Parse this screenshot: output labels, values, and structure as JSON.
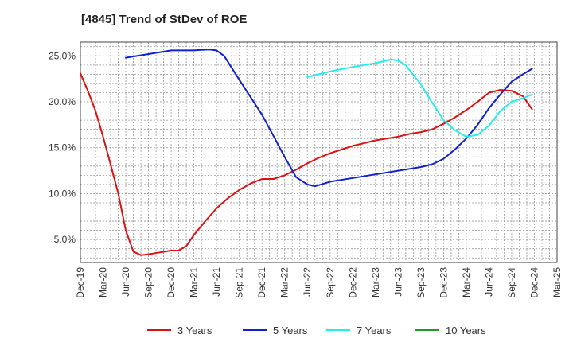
{
  "chart_data": {
    "type": "line",
    "title": "[4845]  Trend of StDev of ROE",
    "xlabel": "",
    "ylabel": "",
    "x": [
      "Dec-19",
      "Mar-20",
      "Jun-20",
      "Sep-20",
      "Dec-20",
      "Mar-21",
      "Jun-21",
      "Sep-21",
      "Dec-21",
      "Mar-22",
      "Jun-22",
      "Sep-22",
      "Dec-22",
      "Mar-23",
      "Jun-23",
      "Sep-23",
      "Dec-23",
      "Mar-24",
      "Jun-24",
      "Sep-24",
      "Dec-24",
      "Mar-25"
    ],
    "ylim": [
      2.5,
      26.5
    ],
    "yticks": [
      5.0,
      10.0,
      15.0,
      20.0,
      25.0
    ],
    "ytick_labels": [
      "5.0%",
      "10.0%",
      "15.0%",
      "20.0%",
      "25.0%"
    ],
    "grid": true,
    "legend_position": "bottom",
    "series": [
      {
        "name": "3 Years",
        "color": "#dd1111",
        "points": [
          [
            0,
            23.1
          ],
          [
            0.33,
            21.2
          ],
          [
            0.67,
            19.0
          ],
          [
            1.0,
            16.2
          ],
          [
            1.33,
            13.2
          ],
          [
            1.67,
            10.0
          ],
          [
            2.0,
            6.0
          ],
          [
            2.33,
            3.7
          ],
          [
            2.67,
            3.3
          ],
          [
            3.0,
            3.4
          ],
          [
            3.5,
            3.6
          ],
          [
            4.0,
            3.8
          ],
          [
            4.33,
            3.8
          ],
          [
            4.67,
            4.3
          ],
          [
            5.0,
            5.5
          ],
          [
            5.5,
            7.0
          ],
          [
            6.0,
            8.4
          ],
          [
            6.5,
            9.5
          ],
          [
            7.0,
            10.4
          ],
          [
            7.5,
            11.1
          ],
          [
            8.0,
            11.6
          ],
          [
            8.5,
            11.6
          ],
          [
            9.0,
            12.0
          ],
          [
            9.5,
            12.6
          ],
          [
            10.0,
            13.3
          ],
          [
            10.5,
            13.9
          ],
          [
            11.0,
            14.4
          ],
          [
            11.5,
            14.8
          ],
          [
            12.0,
            15.2
          ],
          [
            12.5,
            15.5
          ],
          [
            13.0,
            15.8
          ],
          [
            13.5,
            16.0
          ],
          [
            14.0,
            16.2
          ],
          [
            14.5,
            16.5
          ],
          [
            15.0,
            16.7
          ],
          [
            15.5,
            17.0
          ],
          [
            16.0,
            17.6
          ],
          [
            16.5,
            18.3
          ],
          [
            17.0,
            19.1
          ],
          [
            17.5,
            20.0
          ],
          [
            18.0,
            21.0
          ],
          [
            18.5,
            21.3
          ],
          [
            19.0,
            21.2
          ],
          [
            19.5,
            20.6
          ],
          [
            19.9,
            19.2
          ]
        ]
      },
      {
        "name": "5 Years",
        "color": "#1122cc",
        "points": [
          [
            2.0,
            24.8
          ],
          [
            3.0,
            25.2
          ],
          [
            4.0,
            25.6
          ],
          [
            5.0,
            25.6
          ],
          [
            5.67,
            25.7
          ],
          [
            6.0,
            25.6
          ],
          [
            6.33,
            25.0
          ],
          [
            7.0,
            22.4
          ],
          [
            8.0,
            18.6
          ],
          [
            8.5,
            16.3
          ],
          [
            9.0,
            14.0
          ],
          [
            9.5,
            11.8
          ],
          [
            10.0,
            11.0
          ],
          [
            10.33,
            10.8
          ],
          [
            11.0,
            11.3
          ],
          [
            12.0,
            11.7
          ],
          [
            13.0,
            12.1
          ],
          [
            14.0,
            12.5
          ],
          [
            15.0,
            12.9
          ],
          [
            15.5,
            13.2
          ],
          [
            16.0,
            13.8
          ],
          [
            16.5,
            14.8
          ],
          [
            17.0,
            16.0
          ],
          [
            17.5,
            17.5
          ],
          [
            18.0,
            19.3
          ],
          [
            18.5,
            20.8
          ],
          [
            19.0,
            22.2
          ],
          [
            19.5,
            23.0
          ],
          [
            19.9,
            23.6
          ]
        ]
      },
      {
        "name": "7 Years",
        "color": "#22eeee",
        "points": [
          [
            10.0,
            22.7
          ],
          [
            11.0,
            23.3
          ],
          [
            12.0,
            23.8
          ],
          [
            13.0,
            24.2
          ],
          [
            13.67,
            24.6
          ],
          [
            14.0,
            24.5
          ],
          [
            14.33,
            24.0
          ],
          [
            15.0,
            21.9
          ],
          [
            15.5,
            19.9
          ],
          [
            16.0,
            18.0
          ],
          [
            16.5,
            16.9
          ],
          [
            17.0,
            16.2
          ],
          [
            17.5,
            16.4
          ],
          [
            18.0,
            17.4
          ],
          [
            18.5,
            19.0
          ],
          [
            19.0,
            20.0
          ],
          [
            19.5,
            20.4
          ],
          [
            19.9,
            20.8
          ]
        ]
      },
      {
        "name": "10 Years",
        "color": "#229922",
        "points": []
      }
    ]
  }
}
